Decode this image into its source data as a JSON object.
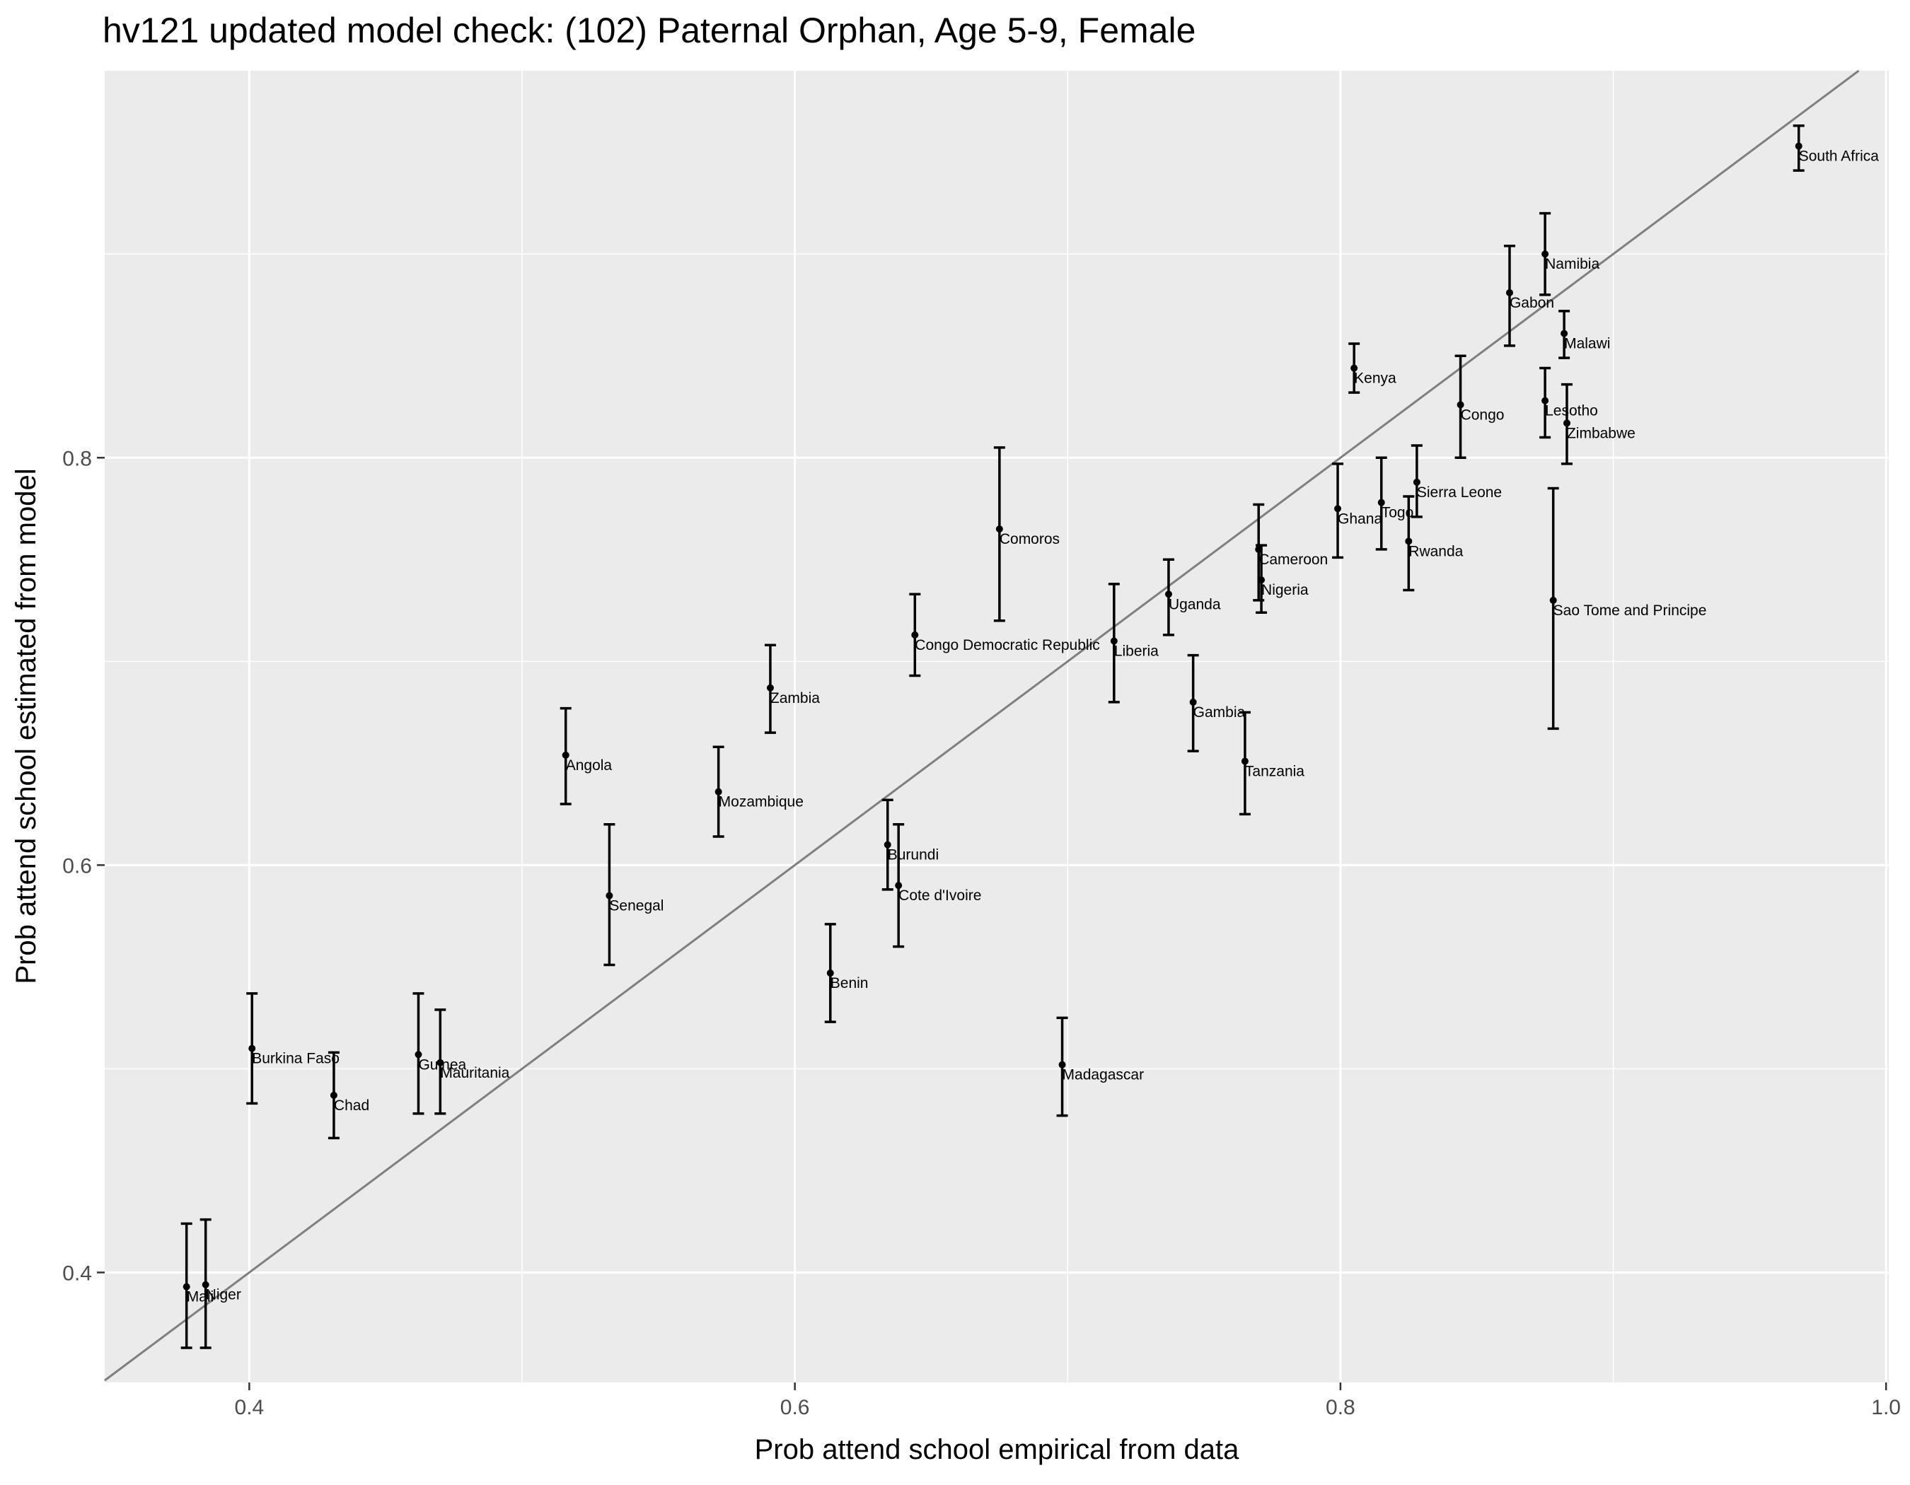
{
  "chart_data": {
    "type": "scatter",
    "title": "hv121 updated model check: (102) Paternal Orphan, Age 5-9, Female",
    "xlabel": "Prob attend school empirical from data",
    "ylabel": "Prob attend school estimated from model",
    "xlim": [
      0.347,
      1.001
    ],
    "ylim": [
      0.346,
      0.99
    ],
    "x_ticks": [
      0.4,
      0.6,
      0.8,
      1.0
    ],
    "x_tick_labels": [
      "0.4",
      "0.6",
      "0.8",
      "1.0"
    ],
    "y_ticks": [
      0.4,
      0.6,
      0.8
    ],
    "y_tick_labels": [
      "0.4",
      "0.6",
      "0.8"
    ],
    "grid": true,
    "background": "#ebebeb",
    "gridline_color": "#ffffff",
    "reference_line": {
      "slope": 1,
      "intercept": 0,
      "color": "#7f7f7f"
    },
    "points": [
      {
        "label": "Mali",
        "x": 0.377,
        "y": 0.393,
        "ymin": 0.363,
        "ymax": 0.424
      },
      {
        "label": "Niger",
        "x": 0.384,
        "y": 0.394,
        "ymin": 0.363,
        "ymax": 0.426
      },
      {
        "label": "Burkina Faso",
        "x": 0.401,
        "y": 0.51,
        "ymin": 0.483,
        "ymax": 0.537
      },
      {
        "label": "Chad",
        "x": 0.431,
        "y": 0.487,
        "ymin": 0.466,
        "ymax": 0.508
      },
      {
        "label": "Guinea",
        "x": 0.462,
        "y": 0.507,
        "ymin": 0.478,
        "ymax": 0.537
      },
      {
        "label": "Mauritania",
        "x": 0.47,
        "y": 0.503,
        "ymin": 0.478,
        "ymax": 0.529
      },
      {
        "label": "Angola",
        "x": 0.516,
        "y": 0.654,
        "ymin": 0.63,
        "ymax": 0.677
      },
      {
        "label": "Senegal",
        "x": 0.532,
        "y": 0.585,
        "ymin": 0.551,
        "ymax": 0.62
      },
      {
        "label": "Mozambique",
        "x": 0.572,
        "y": 0.636,
        "ymin": 0.614,
        "ymax": 0.658
      },
      {
        "label": "Zambia",
        "x": 0.591,
        "y": 0.687,
        "ymin": 0.665,
        "ymax": 0.708
      },
      {
        "label": "Benin",
        "x": 0.613,
        "y": 0.547,
        "ymin": 0.523,
        "ymax": 0.571
      },
      {
        "label": "Burundi",
        "x": 0.634,
        "y": 0.61,
        "ymin": 0.588,
        "ymax": 0.632
      },
      {
        "label": "Cote d'Ivoire",
        "x": 0.638,
        "y": 0.59,
        "ymin": 0.56,
        "ymax": 0.62
      },
      {
        "label": "Congo Democratic Republic",
        "x": 0.644,
        "y": 0.713,
        "ymin": 0.693,
        "ymax": 0.733
      },
      {
        "label": "Comoros",
        "x": 0.675,
        "y": 0.765,
        "ymin": 0.72,
        "ymax": 0.805
      },
      {
        "label": "Madagascar",
        "x": 0.698,
        "y": 0.502,
        "ymin": 0.477,
        "ymax": 0.525
      },
      {
        "label": "Liberia",
        "x": 0.717,
        "y": 0.71,
        "ymin": 0.68,
        "ymax": 0.738
      },
      {
        "label": "Uganda",
        "x": 0.737,
        "y": 0.733,
        "ymin": 0.713,
        "ymax": 0.75
      },
      {
        "label": "Gambia",
        "x": 0.746,
        "y": 0.68,
        "ymin": 0.656,
        "ymax": 0.703
      },
      {
        "label": "Tanzania",
        "x": 0.765,
        "y": 0.651,
        "ymin": 0.625,
        "ymax": 0.675
      },
      {
        "label": "Cameroon",
        "x": 0.77,
        "y": 0.755,
        "ymin": 0.73,
        "ymax": 0.777
      },
      {
        "label": "Nigeria",
        "x": 0.771,
        "y": 0.74,
        "ymin": 0.724,
        "ymax": 0.757
      },
      {
        "label": "Ghana",
        "x": 0.799,
        "y": 0.775,
        "ymin": 0.751,
        "ymax": 0.797
      },
      {
        "label": "Kenya",
        "x": 0.805,
        "y": 0.844,
        "ymin": 0.832,
        "ymax": 0.856
      },
      {
        "label": "Togo",
        "x": 0.815,
        "y": 0.778,
        "ymin": 0.755,
        "ymax": 0.8
      },
      {
        "label": "Rwanda",
        "x": 0.825,
        "y": 0.759,
        "ymin": 0.735,
        "ymax": 0.781
      },
      {
        "label": "Sierra Leone",
        "x": 0.828,
        "y": 0.788,
        "ymin": 0.771,
        "ymax": 0.806
      },
      {
        "label": "Congo",
        "x": 0.844,
        "y": 0.826,
        "ymin": 0.8,
        "ymax": 0.85
      },
      {
        "label": "Gabon",
        "x": 0.862,
        "y": 0.881,
        "ymin": 0.855,
        "ymax": 0.904
      },
      {
        "label": "Lesotho",
        "x": 0.875,
        "y": 0.828,
        "ymin": 0.81,
        "ymax": 0.844
      },
      {
        "label": "Namibia",
        "x": 0.875,
        "y": 0.9,
        "ymin": 0.88,
        "ymax": 0.92
      },
      {
        "label": "Sao Tome and Principe",
        "x": 0.878,
        "y": 0.73,
        "ymin": 0.667,
        "ymax": 0.785
      },
      {
        "label": "Malawi",
        "x": 0.882,
        "y": 0.861,
        "ymin": 0.849,
        "ymax": 0.872
      },
      {
        "label": "Zimbabwe",
        "x": 0.883,
        "y": 0.817,
        "ymin": 0.797,
        "ymax": 0.836
      },
      {
        "label": "South Africa",
        "x": 0.968,
        "y": 0.953,
        "ymin": 0.941,
        "ymax": 0.963
      }
    ]
  }
}
